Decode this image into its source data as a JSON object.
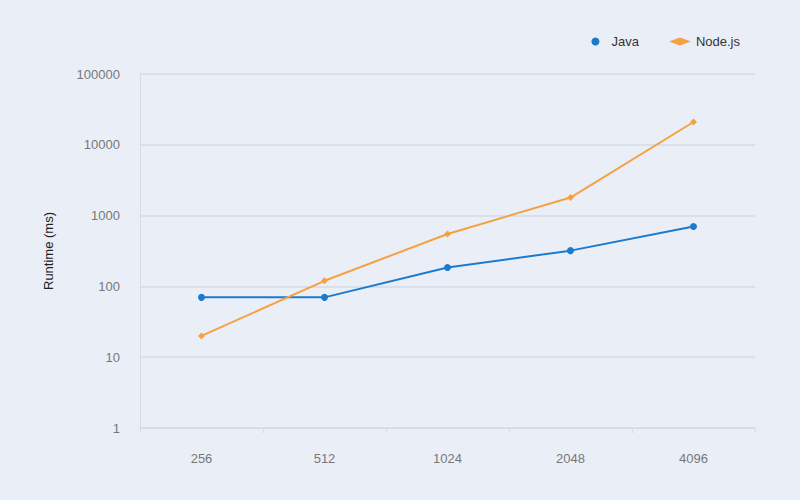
{
  "chart_data": {
    "type": "line",
    "y_label": "Runtime (ms)",
    "categories": [
      "256",
      "512",
      "1024",
      "2048",
      "4096"
    ],
    "series": [
      {
        "name": "Java",
        "color": "#1b7acb",
        "marker": "circle",
        "values": [
          70,
          70,
          185,
          320,
          700
        ]
      },
      {
        "name": "Node.js",
        "color": "#f5a142",
        "marker": "diamond",
        "values": [
          20,
          120,
          550,
          1800,
          21000
        ]
      }
    ],
    "log": "y",
    "ylim": [
      1,
      100000
    ],
    "yticks": [
      1,
      10,
      100,
      1000,
      10000,
      100000
    ],
    "grid": true,
    "legend": "top-right"
  }
}
